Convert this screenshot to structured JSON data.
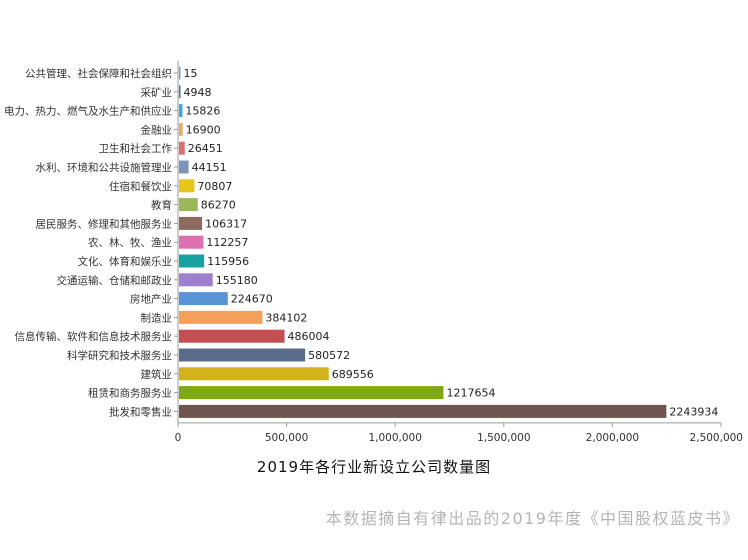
{
  "chart_data": {
    "type": "bar",
    "orientation": "horizontal",
    "title": "2019年各行业新设立公司数量图",
    "xlabel": "",
    "ylabel": "",
    "xlim": [
      0,
      2500000
    ],
    "x_ticks": [
      "0",
      "500,000",
      "1,000,000",
      "1,500,000",
      "2,000,000",
      "2,500,000"
    ],
    "grid": false,
    "legend": "none",
    "categories": [
      "公共管理、社会保障和社会组织",
      "采矿业",
      "电力、热力、燃气及水生产和供应业",
      "金融业",
      "卫生和社会工作",
      "水利、环境和公共设施管理业",
      "住宿和餐饮业",
      "教育",
      "居民服务、修理和其他服务业",
      "农、林、牧、渔业",
      "文化、体育和娱乐业",
      "交通运输、仓储和邮政业",
      "房地产业",
      "制造业",
      "信息传输、软件和信息技术服务业",
      "科学研究和技术服务业",
      "建筑业",
      "租赁和商务服务业",
      "批发和零售业"
    ],
    "values": [
      15,
      4948,
      15826,
      16900,
      26451,
      44151,
      70807,
      86270,
      106317,
      112257,
      115956,
      155180,
      224670,
      384102,
      486004,
      580572,
      689556,
      1217654,
      2243934
    ],
    "value_labels": [
      "15",
      "4948",
      "15826",
      "16900",
      "26451",
      "44151",
      "70807",
      "86270",
      "106317",
      "112257",
      "115956",
      "155180",
      "224670",
      "384102",
      "486004",
      "580572",
      "689556",
      "1217654",
      "2243934"
    ],
    "colors": [
      "#6aa3d8",
      "#4a6fa5",
      "#3fa7e0",
      "#f0a860",
      "#d9716a",
      "#7f95b5",
      "#e7c51a",
      "#9ab85a",
      "#8c6a5f",
      "#dc6fb0",
      "#17a3a3",
      "#9f7fd0",
      "#5a93d6",
      "#f4a05a",
      "#c44e52",
      "#5a6b8c",
      "#d4b21c",
      "#7faa12",
      "#6e5550"
    ]
  },
  "footer": {
    "source_note": "本数据摘自有律出品的2019年度《中国股权蓝皮书》"
  }
}
